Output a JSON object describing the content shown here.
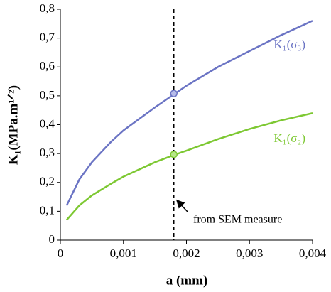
{
  "chart_data": {
    "type": "line",
    "x_label": "a (mm)",
    "y_label": "K₁(MPa.m¹ᐟ²)",
    "x": [
      0.0001,
      0.0003,
      0.0005,
      0.0008,
      0.001,
      0.0015,
      0.0018,
      0.002,
      0.0025,
      0.003,
      0.0035,
      0.004
    ],
    "series": [
      {
        "name": "K₁(σ₃)",
        "color": "#6b74c4",
        "values": [
          0.12,
          0.21,
          0.27,
          0.34,
          0.38,
          0.46,
          0.505,
          0.535,
          0.6,
          0.655,
          0.71,
          0.76
        ],
        "marker": {
          "x": 0.0018,
          "y": 0.508
        }
      },
      {
        "name": "K₁(σ₂)",
        "color": "#7dc832",
        "values": [
          0.07,
          0.12,
          0.155,
          0.195,
          0.22,
          0.27,
          0.295,
          0.31,
          0.35,
          0.385,
          0.415,
          0.44
        ],
        "marker": {
          "x": 0.0018,
          "y": 0.297
        }
      }
    ],
    "vline": 0.0018,
    "annotation": "from SEM measure",
    "xlim": [
      0,
      0.004
    ],
    "xticks": [
      0,
      {
        "value": 0.001,
        "label": "0,001"
      },
      {
        "value": 0.002,
        "label": "0,002"
      },
      {
        "value": 0.003,
        "label": "0,003"
      },
      {
        "value": 0.004,
        "label": "0,004"
      }
    ],
    "ylim": [
      0,
      0.8
    ],
    "yticks": [
      0,
      {
        "value": 0.1,
        "label": "0,1"
      },
      {
        "value": 0.2,
        "label": "0,2"
      },
      {
        "value": 0.3,
        "label": "0,3"
      },
      {
        "value": 0.4,
        "label": "0,4"
      },
      {
        "value": 0.5,
        "label": "0,5"
      },
      {
        "value": 0.6,
        "label": "0,6"
      },
      {
        "value": 0.7,
        "label": "0,7"
      },
      {
        "value": 0.8,
        "label": "0,8"
      }
    ],
    "grid": false
  }
}
